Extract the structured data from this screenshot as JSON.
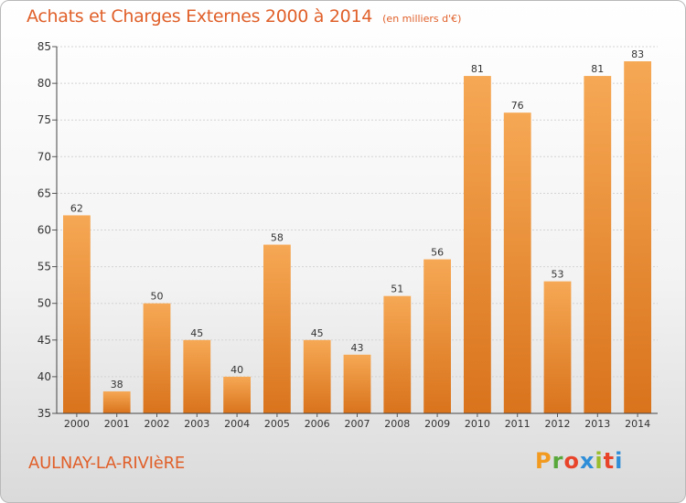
{
  "chart_data": {
    "type": "bar",
    "title": "Achats et Charges Externes 2000 à 2014",
    "subtitle": "(en milliers d'€)",
    "categories": [
      "2000",
      "2001",
      "2002",
      "2003",
      "2004",
      "2005",
      "2006",
      "2007",
      "2008",
      "2009",
      "2010",
      "2011",
      "2012",
      "2013",
      "2014"
    ],
    "values": [
      62,
      38,
      50,
      45,
      40,
      58,
      45,
      43,
      51,
      56,
      81,
      76,
      53,
      81,
      83
    ],
    "xlabel": "",
    "ylabel": "",
    "ylim": [
      35,
      85
    ],
    "yticks": [
      35,
      40,
      45,
      50,
      55,
      60,
      65,
      70,
      75,
      80,
      85
    ],
    "grid": true,
    "legend": "none",
    "colors": {
      "bar_light": "#f6a854",
      "bar_dark": "#d9731c",
      "title": "#e0602a"
    }
  },
  "footer": {
    "commune": "AULNAY-LA-RIVIèRE",
    "brand": "Proxiti",
    "brand_colors": [
      "#f29a1f",
      "#58a83c",
      "#e8442a",
      "#2f8ed8",
      "#9bbd2c",
      "#e8442a",
      "#2f8ed8"
    ]
  }
}
